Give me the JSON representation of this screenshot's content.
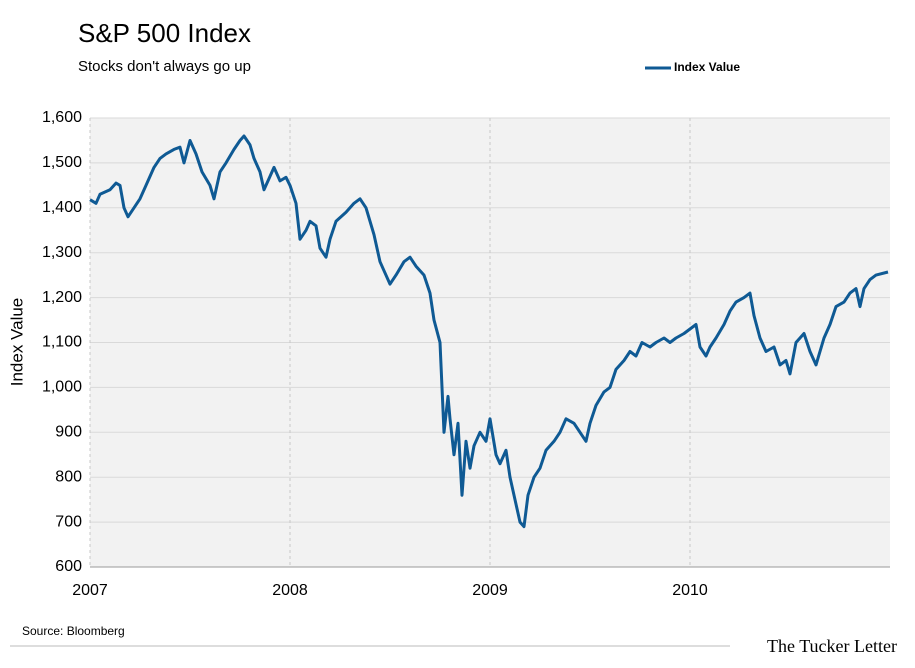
{
  "chart_data": {
    "type": "line",
    "title": "S&P 500 Index",
    "subtitle": "Stocks don't always go up",
    "ylabel": "Index Value",
    "source": "Source: Bloomberg",
    "credit": "The Tucker Letter",
    "legend": "top-right",
    "grid": true,
    "xlim": [
      2007,
      2011
    ],
    "xticks": [
      2007,
      2008,
      2009,
      2010
    ],
    "ylim": [
      600,
      1600
    ],
    "yticks": [
      600,
      700,
      800,
      900,
      {
        "value": 1000,
        "label": "1,000"
      },
      {
        "value": 1100,
        "label": "1,100"
      },
      {
        "value": 1200,
        "label": "1,200"
      },
      {
        "value": 1300,
        "label": "1,300"
      },
      {
        "value": 1400,
        "label": "1,400"
      },
      {
        "value": 1500,
        "label": "1,500"
      },
      {
        "value": 1600,
        "label": "1,600"
      }
    ],
    "x": [
      2007.0,
      2007.03,
      2007.05,
      2007.1,
      2007.13,
      2007.15,
      2007.17,
      2007.19,
      2007.22,
      2007.25,
      2007.28,
      2007.32,
      2007.35,
      2007.38,
      2007.42,
      2007.45,
      2007.47,
      2007.5,
      2007.53,
      2007.56,
      2007.6,
      2007.62,
      2007.65,
      2007.68,
      2007.72,
      2007.75,
      2007.77,
      2007.8,
      2007.82,
      2007.85,
      2007.87,
      2007.9,
      2007.92,
      2007.95,
      2007.98,
      2008.0,
      2008.03,
      2008.05,
      2008.08,
      2008.1,
      2008.13,
      2008.15,
      2008.18,
      2008.2,
      2008.23,
      2008.28,
      2008.32,
      2008.35,
      2008.38,
      2008.42,
      2008.45,
      2008.47,
      2008.5,
      2008.53,
      2008.57,
      2008.6,
      2008.63,
      2008.67,
      2008.7,
      2008.72,
      2008.75,
      2008.76,
      2008.77,
      2008.79,
      2008.8,
      2008.82,
      2008.84,
      2008.86,
      2008.88,
      2008.9,
      2008.92,
      2008.95,
      2008.98,
      2009.0,
      2009.03,
      2009.05,
      2009.08,
      2009.1,
      2009.12,
      2009.15,
      2009.17,
      2009.19,
      2009.22,
      2009.25,
      2009.28,
      2009.32,
      2009.35,
      2009.38,
      2009.42,
      2009.45,
      2009.48,
      2009.5,
      2009.53,
      2009.57,
      2009.6,
      2009.63,
      2009.67,
      2009.7,
      2009.73,
      2009.76,
      2009.8,
      2009.83,
      2009.87,
      2009.9,
      2009.93,
      2009.97,
      2010.0,
      2010.03,
      2010.05,
      2010.08,
      2010.1,
      2010.13,
      2010.17,
      2010.2,
      2010.23,
      2010.27,
      2010.3,
      2010.32,
      2010.35,
      2010.38,
      2010.42,
      2010.45,
      2010.48,
      2010.5,
      2010.53,
      2010.57,
      2010.6,
      2010.63,
      2010.67,
      2010.7,
      2010.73,
      2010.77,
      2010.8,
      2010.83,
      2010.85,
      2010.87,
      2010.9,
      2010.93,
      2010.99
    ],
    "series": [
      {
        "name": "Index Value",
        "color": "#0f5a94",
        "values": [
          1418,
          1410,
          1430,
          1440,
          1455,
          1450,
          1400,
          1380,
          1400,
          1420,
          1450,
          1490,
          1510,
          1520,
          1530,
          1535,
          1500,
          1550,
          1520,
          1480,
          1450,
          1420,
          1480,
          1500,
          1530,
          1550,
          1560,
          1540,
          1510,
          1480,
          1440,
          1470,
          1490,
          1460,
          1468,
          1450,
          1410,
          1330,
          1350,
          1370,
          1360,
          1310,
          1290,
          1330,
          1370,
          1390,
          1410,
          1420,
          1400,
          1340,
          1280,
          1260,
          1230,
          1250,
          1280,
          1290,
          1270,
          1250,
          1210,
          1150,
          1100,
          1000,
          900,
          980,
          930,
          850,
          920,
          760,
          880,
          820,
          870,
          900,
          880,
          930,
          850,
          830,
          860,
          800,
          760,
          700,
          690,
          760,
          800,
          820,
          860,
          880,
          900,
          930,
          920,
          900,
          880,
          920,
          960,
          990,
          1000,
          1040,
          1060,
          1080,
          1070,
          1100,
          1090,
          1100,
          1110,
          1100,
          1110,
          1120,
          1130,
          1140,
          1090,
          1070,
          1090,
          1110,
          1140,
          1170,
          1190,
          1200,
          1210,
          1160,
          1110,
          1080,
          1090,
          1050,
          1060,
          1030,
          1100,
          1120,
          1080,
          1050,
          1110,
          1140,
          1180,
          1190,
          1210,
          1220,
          1180,
          1220,
          1240,
          1250,
          1257
        ]
      }
    ]
  }
}
